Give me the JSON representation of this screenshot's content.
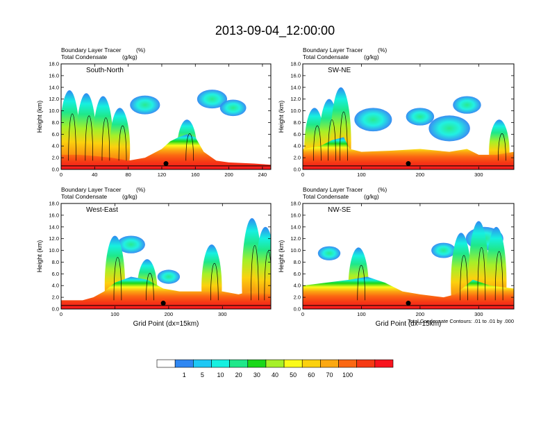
{
  "title": "2013-09-04_12:00:00",
  "colorbar": {
    "colors": [
      "#ffffff",
      "#2f87f2",
      "#1ec8f5",
      "#16f0e0",
      "#1fe88a",
      "#1ad81a",
      "#a6f028",
      "#fbfb1a",
      "#fbd10e",
      "#fba811",
      "#fb6812",
      "#f63a14",
      "#f8141e"
    ],
    "labels": [
      "1",
      "5",
      "10",
      "20",
      "30",
      "40",
      "50",
      "60",
      "70",
      "100"
    ]
  },
  "footnote": "Total Condensate Contours: .01 to .01 by .000",
  "chart_data": [
    {
      "type": "heatmap",
      "panel_label": "South-North",
      "subtitle_line1_left": "Boundary Layer Tracer",
      "subtitle_line1_right": "(%)",
      "subtitle_line2_left": "Total Condensate",
      "subtitle_line2_right": "(g/kg)",
      "ylabel": "Height (km)",
      "xlabel": "",
      "xlim": [
        0,
        250
      ],
      "ylim": [
        0,
        18
      ],
      "xticks": [
        "0",
        "40",
        "80",
        "120",
        "160",
        "200",
        "240"
      ],
      "xtick_values": [
        0,
        40,
        80,
        120,
        160,
        200,
        240
      ],
      "yticks": [
        "0.0",
        "2.0",
        "4.0",
        "6.0",
        "8.0",
        "10.0",
        "12.0",
        "14.0",
        "16.0",
        "18.0"
      ],
      "marker_x": 125,
      "bl_top": [
        [
          0,
          2.5
        ],
        [
          20,
          2.5
        ],
        [
          40,
          2.3
        ],
        [
          60,
          2.0
        ],
        [
          80,
          1.5
        ],
        [
          100,
          2.0
        ],
        [
          120,
          3.5
        ],
        [
          130,
          4.8
        ],
        [
          140,
          5.5
        ],
        [
          150,
          6.0
        ],
        [
          160,
          5.5
        ],
        [
          170,
          3.0
        ],
        [
          185,
          1.5
        ],
        [
          200,
          1.2
        ],
        [
          230,
          1.0
        ],
        [
          250,
          0.8
        ]
      ],
      "plumes": [
        {
          "x": 10,
          "top": 13.5
        },
        {
          "x": 30,
          "top": 13.0
        },
        {
          "x": 50,
          "top": 12.5
        },
        {
          "x": 70,
          "top": 10.5
        },
        {
          "x": 150,
          "top": 8.5
        }
      ],
      "clouds": [
        {
          "x": 100,
          "y": 11,
          "r": 1.6
        },
        {
          "x": 180,
          "y": 12,
          "r": 1.6
        },
        {
          "x": 205,
          "y": 10.5,
          "r": 1.4
        }
      ]
    },
    {
      "type": "heatmap",
      "panel_label": "SW-NE",
      "subtitle_line1_left": "Boundary Layer Tracer",
      "subtitle_line1_right": "(%)",
      "subtitle_line2_left": "Total Condensate",
      "subtitle_line2_right": "(g/kg)",
      "ylabel": "Height (km)",
      "xlabel": "",
      "xlim": [
        0,
        360
      ],
      "ylim": [
        0,
        18
      ],
      "xticks": [
        "0",
        "100",
        "200",
        "300"
      ],
      "xtick_values": [
        0,
        100,
        200,
        300
      ],
      "yticks": [
        "0.0",
        "2.0",
        "4.0",
        "6.0",
        "8.0",
        "10.0",
        "12.0",
        "14.0",
        "16.0",
        "18.0"
      ],
      "marker_x": 180,
      "bl_top": [
        [
          0,
          3.5
        ],
        [
          30,
          4.0
        ],
        [
          50,
          5.0
        ],
        [
          70,
          5.5
        ],
        [
          80,
          3.5
        ],
        [
          100,
          3.0
        ],
        [
          150,
          3.2
        ],
        [
          200,
          3.5
        ],
        [
          250,
          3.0
        ],
        [
          280,
          3.5
        ],
        [
          300,
          2.5
        ],
        [
          330,
          2.5
        ],
        [
          360,
          3.0
        ]
      ],
      "plumes": [
        {
          "x": 20,
          "top": 10.5
        },
        {
          "x": 45,
          "top": 12.0
        },
        {
          "x": 65,
          "top": 14.0
        },
        {
          "x": 335,
          "top": 8.5
        }
      ],
      "clouds": [
        {
          "x": 120,
          "y": 8.5,
          "r": 2.0
        },
        {
          "x": 200,
          "y": 9.0,
          "r": 1.5
        },
        {
          "x": 250,
          "y": 7.0,
          "r": 2.2
        },
        {
          "x": 280,
          "y": 11.0,
          "r": 1.5
        }
      ]
    },
    {
      "type": "heatmap",
      "panel_label": "West-East",
      "subtitle_line1_left": "Boundary Layer Tracer",
      "subtitle_line1_right": "(%)",
      "subtitle_line2_left": "Total Condensate",
      "subtitle_line2_right": "(g/kg)",
      "ylabel": "Height (km)",
      "xlabel": "Grid Point (dx=15km)",
      "xlim": [
        0,
        390
      ],
      "ylim": [
        0,
        18
      ],
      "xticks": [
        "0",
        "100",
        "200",
        "300"
      ],
      "xtick_values": [
        0,
        100,
        200,
        300
      ],
      "yticks": [
        "0.0",
        "2.0",
        "4.0",
        "6.0",
        "8.0",
        "10.0",
        "12.0",
        "14.0",
        "16.0",
        "18.0"
      ],
      "marker_x": 190,
      "bl_top": [
        [
          0,
          1.5
        ],
        [
          40,
          1.5
        ],
        [
          60,
          2.0
        ],
        [
          80,
          3.0
        ],
        [
          100,
          4.5
        ],
        [
          130,
          5.5
        ],
        [
          160,
          5.0
        ],
        [
          190,
          3.5
        ],
        [
          220,
          3.0
        ],
        [
          260,
          3.0
        ],
        [
          300,
          3.0
        ],
        [
          330,
          2.5
        ],
        [
          350,
          3.0
        ],
        [
          390,
          2.5
        ]
      ],
      "plumes": [
        {
          "x": 100,
          "top": 12.5
        },
        {
          "x": 160,
          "top": 8.5
        },
        {
          "x": 280,
          "top": 11.0
        },
        {
          "x": 355,
          "top": 15.5
        },
        {
          "x": 380,
          "top": 14.0
        }
      ],
      "clouds": [
        {
          "x": 200,
          "y": 5.5,
          "r": 1.2
        },
        {
          "x": 130,
          "y": 11.0,
          "r": 1.5
        }
      ]
    },
    {
      "type": "heatmap",
      "panel_label": "NW-SE",
      "subtitle_line1_left": "Boundary Layer Tracer",
      "subtitle_line1_right": "(%)",
      "subtitle_line2_left": "Total Condensate",
      "subtitle_line2_right": "(g/kg)",
      "ylabel": "Height (km)",
      "xlabel": "Grid Point (dx=15km)",
      "xlim": [
        0,
        360
      ],
      "ylim": [
        0,
        18
      ],
      "xticks": [
        "0",
        "100",
        "200",
        "300"
      ],
      "xtick_values": [
        0,
        100,
        200,
        300
      ],
      "yticks": [
        "0.0",
        "2.0",
        "4.0",
        "6.0",
        "8.0",
        "10.0",
        "12.0",
        "14.0",
        "16.0",
        "18.0"
      ],
      "marker_x": 180,
      "bl_top": [
        [
          0,
          4.0
        ],
        [
          40,
          4.5
        ],
        [
          80,
          5.0
        ],
        [
          110,
          5.5
        ],
        [
          140,
          4.5
        ],
        [
          170,
          3.0
        ],
        [
          200,
          2.5
        ],
        [
          240,
          2.0
        ],
        [
          260,
          2.5
        ],
        [
          290,
          5.0
        ],
        [
          320,
          4.0
        ],
        [
          360,
          3.5
        ]
      ],
      "plumes": [
        {
          "x": 95,
          "top": 10.5
        },
        {
          "x": 270,
          "top": 13.0
        },
        {
          "x": 300,
          "top": 15.0
        },
        {
          "x": 330,
          "top": 14.0
        }
      ],
      "clouds": [
        {
          "x": 45,
          "y": 9.5,
          "r": 1.2
        },
        {
          "x": 240,
          "y": 10.0,
          "r": 1.3
        },
        {
          "x": 310,
          "y": 12.0,
          "r": 2.0
        }
      ]
    }
  ]
}
